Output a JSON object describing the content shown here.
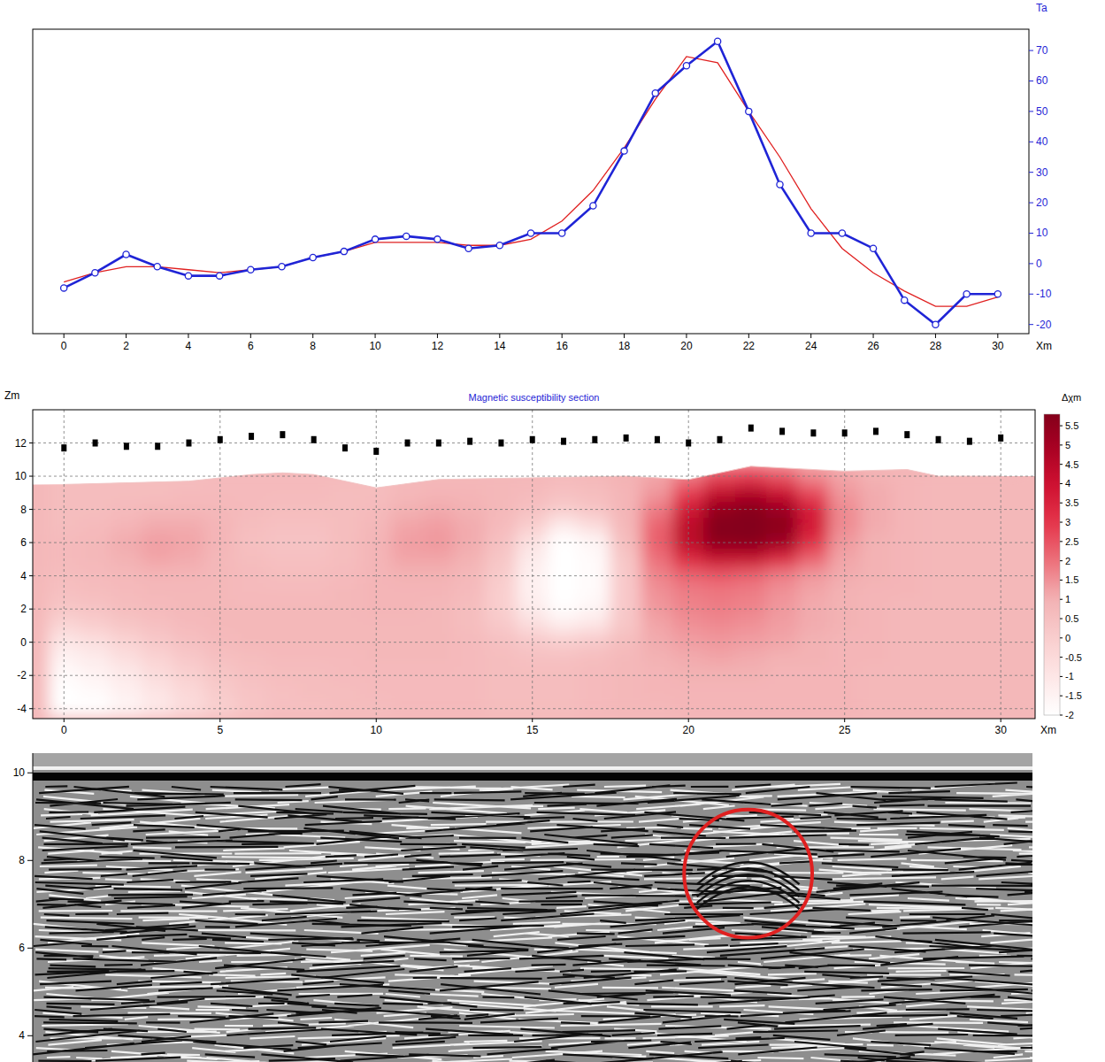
{
  "chart_data": [
    {
      "type": "line",
      "xlabel": "Xm",
      "ylabel": "Ta",
      "x": [
        0,
        1,
        2,
        3,
        4,
        5,
        6,
        7,
        8,
        9,
        10,
        11,
        12,
        13,
        14,
        15,
        16,
        17,
        18,
        19,
        20,
        21,
        22,
        23,
        24,
        25,
        26,
        27,
        28,
        29,
        30
      ],
      "series": [
        {
          "color": "#1f24d6",
          "marker": "circle",
          "line_style": "solid",
          "values": [
            -8,
            -3,
            3,
            -1,
            -4,
            -4,
            -2,
            -1,
            2,
            4,
            8,
            9,
            8,
            5,
            6,
            10,
            10,
            19,
            37,
            56,
            65,
            73,
            50,
            26,
            10,
            10,
            5,
            -12,
            -20,
            -10,
            -10
          ]
        },
        {
          "color": "#e02020",
          "marker": "none",
          "line_style": "solid",
          "values": [
            -6,
            -3,
            -1,
            -1,
            -2,
            -3,
            -2,
            -1,
            2,
            4,
            7,
            7,
            7,
            6,
            6,
            8,
            14,
            24,
            38,
            54,
            68,
            66,
            50,
            35,
            18,
            5,
            -3,
            -9,
            -14,
            -14,
            -11
          ]
        }
      ],
      "xlim": [
        -1,
        31
      ],
      "ylim": [
        -23,
        77
      ],
      "xticks": [
        0,
        2,
        4,
        6,
        8,
        10,
        12,
        14,
        16,
        18,
        20,
        22,
        24,
        26,
        28,
        30
      ],
      "yticks": [
        -20,
        -10,
        0,
        10,
        20,
        30,
        40,
        50,
        60,
        70
      ],
      "grid": false
    },
    {
      "type": "heatmap",
      "title": "Magnetic susceptibility section",
      "xlabel": "Xm",
      "ylabel": "Zm",
      "xlim": [
        -1,
        31.1
      ],
      "ylim": [
        -4.6,
        14
      ],
      "xticks": [
        0,
        5,
        10,
        15,
        20,
        25,
        30
      ],
      "yticks": [
        -4,
        -2,
        0,
        2,
        4,
        6,
        8,
        10,
        12
      ],
      "grid": true,
      "cell_x": [
        0,
        1,
        2,
        3,
        4,
        5,
        6,
        7,
        8,
        9,
        10,
        11,
        12,
        13,
        14,
        15,
        16,
        17,
        18,
        19,
        20,
        21,
        22,
        23,
        24,
        25,
        26,
        27,
        28,
        29,
        30
      ],
      "cell_z": [
        10,
        9,
        8,
        7,
        6,
        5,
        4,
        3,
        2,
        1,
        0,
        -1,
        -2,
        -3,
        -4
      ],
      "cells": [
        [
          0.6,
          0.6,
          0.6,
          0.6,
          0.6,
          0.7,
          0.7,
          0.7,
          0.7,
          0.7,
          0.7,
          0.8,
          0.8,
          0.8,
          0.8,
          0.8,
          0.7,
          0.8,
          1.0,
          1.2,
          1.8,
          2.6,
          2.8,
          2.4,
          1.6,
          1.2,
          1.0,
          0.9,
          0.8,
          0.8,
          0.8
        ],
        [
          0.6,
          0.6,
          0.6,
          0.6,
          0.7,
          0.7,
          0.7,
          0.7,
          0.7,
          0.6,
          0.6,
          0.8,
          0.9,
          0.9,
          0.8,
          0.7,
          0.5,
          0.6,
          0.9,
          1.4,
          2.8,
          4.2,
          4.6,
          4.0,
          2.6,
          1.4,
          1.1,
          0.9,
          0.8,
          0.8,
          0.8
        ],
        [
          0.6,
          0.6,
          0.7,
          0.8,
          0.8,
          0.8,
          0.7,
          0.6,
          0.6,
          0.6,
          0.7,
          1.0,
          1.1,
          1.0,
          0.8,
          0.5,
          0.1,
          0.4,
          0.9,
          1.8,
          3.8,
          5.4,
          5.7,
          5.2,
          3.6,
          1.6,
          1.1,
          0.9,
          0.8,
          0.8,
          0.8
        ],
        [
          0.6,
          0.7,
          0.9,
          1.1,
          1.1,
          0.9,
          0.6,
          0.5,
          0.5,
          0.6,
          0.8,
          1.2,
          1.3,
          1.1,
          0.7,
          0.0,
          -1.2,
          -0.6,
          0.8,
          2.2,
          4.4,
          5.8,
          5.8,
          5.6,
          3.8,
          1.6,
          1.1,
          0.9,
          0.8,
          0.8,
          0.8
        ],
        [
          0.7,
          0.8,
          1.1,
          1.3,
          1.2,
          0.9,
          0.5,
          0.4,
          0.4,
          0.6,
          0.9,
          1.3,
          1.4,
          1.1,
          0.5,
          -0.8,
          -2.0,
          -1.6,
          0.6,
          2.3,
          4.4,
          5.6,
          5.7,
          5.2,
          3.2,
          1.4,
          1.0,
          0.9,
          0.8,
          0.8,
          0.8
        ],
        [
          0.7,
          0.8,
          1.0,
          1.2,
          1.1,
          0.8,
          0.6,
          0.5,
          0.5,
          0.6,
          0.9,
          1.2,
          1.2,
          1.0,
          0.3,
          -1.2,
          -2.0,
          -1.8,
          0.3,
          2.0,
          3.4,
          4.2,
          4.2,
          3.4,
          2.2,
          1.2,
          1.0,
          0.9,
          0.8,
          0.8,
          0.8
        ],
        [
          0.6,
          0.7,
          0.8,
          0.9,
          0.9,
          0.8,
          0.7,
          0.6,
          0.6,
          0.7,
          0.9,
          1.0,
          1.0,
          0.8,
          0.1,
          -1.4,
          -2.0,
          -1.8,
          0.2,
          1.7,
          2.2,
          2.4,
          2.2,
          1.8,
          1.4,
          1.1,
          1.0,
          0.9,
          0.8,
          0.8,
          0.8
        ],
        [
          0.5,
          0.6,
          0.7,
          0.8,
          0.8,
          0.8,
          0.7,
          0.7,
          0.7,
          0.8,
          0.9,
          0.9,
          0.9,
          0.7,
          0.0,
          -1.4,
          -2.0,
          -1.8,
          0.2,
          1.5,
          1.8,
          1.9,
          1.8,
          1.5,
          1.2,
          1.0,
          0.9,
          0.9,
          0.8,
          0.8,
          0.8
        ],
        [
          0.3,
          0.4,
          0.6,
          0.7,
          0.8,
          0.8,
          0.8,
          0.8,
          0.8,
          0.8,
          0.9,
          0.9,
          0.8,
          0.6,
          0.0,
          -1.2,
          -1.9,
          -1.6,
          0.2,
          1.4,
          1.7,
          1.8,
          1.7,
          1.4,
          1.1,
          1.0,
          0.9,
          0.8,
          0.8,
          0.8,
          0.8
        ],
        [
          -0.3,
          0.0,
          0.3,
          0.5,
          0.7,
          0.8,
          0.8,
          0.8,
          0.8,
          0.8,
          0.8,
          0.8,
          0.8,
          0.6,
          0.2,
          -0.6,
          -1.2,
          -0.9,
          0.3,
          1.2,
          1.5,
          1.6,
          1.5,
          1.3,
          1.1,
          1.0,
          0.9,
          0.8,
          0.8,
          0.8,
          0.8
        ],
        [
          -1.0,
          -0.7,
          -0.2,
          0.2,
          0.5,
          0.7,
          0.8,
          0.8,
          0.8,
          0.8,
          0.8,
          0.8,
          0.8,
          0.7,
          0.5,
          0.2,
          0.0,
          0.2,
          0.6,
          1.1,
          1.3,
          1.4,
          1.3,
          1.2,
          1.0,
          0.9,
          0.9,
          0.8,
          0.8,
          0.8,
          0.8
        ],
        [
          -1.5,
          -1.2,
          -0.7,
          -0.2,
          0.2,
          0.5,
          0.6,
          0.7,
          0.7,
          0.7,
          0.8,
          0.8,
          0.8,
          0.7,
          0.6,
          0.5,
          0.5,
          0.6,
          0.8,
          1.0,
          1.1,
          1.2,
          1.1,
          1.0,
          1.0,
          0.9,
          0.9,
          0.8,
          0.8,
          0.8,
          0.8
        ],
        [
          -1.8,
          -1.5,
          -1.1,
          -0.6,
          -0.1,
          0.3,
          0.5,
          0.6,
          0.6,
          0.7,
          0.7,
          0.7,
          0.7,
          0.7,
          0.6,
          0.6,
          0.6,
          0.7,
          0.8,
          0.9,
          1.0,
          1.0,
          1.0,
          0.9,
          0.9,
          0.9,
          0.8,
          0.8,
          0.8,
          0.8,
          0.8
        ],
        [
          -2.0,
          -1.8,
          -1.4,
          -0.9,
          -0.4,
          0.1,
          0.4,
          0.5,
          0.6,
          0.6,
          0.7,
          0.7,
          0.7,
          0.7,
          0.6,
          0.6,
          0.6,
          0.7,
          0.8,
          0.9,
          0.9,
          0.9,
          0.9,
          0.9,
          0.9,
          0.9,
          0.8,
          0.8,
          0.8,
          0.8,
          0.8
        ],
        [
          -2.0,
          -2.0,
          -1.6,
          -1.1,
          -0.6,
          -0.1,
          0.3,
          0.5,
          0.5,
          0.6,
          0.6,
          0.7,
          0.7,
          0.7,
          0.6,
          0.6,
          0.6,
          0.7,
          0.8,
          0.8,
          0.9,
          0.9,
          0.9,
          0.9,
          0.9,
          0.9,
          0.8,
          0.8,
          0.8,
          0.8,
          0.8
        ]
      ],
      "surface": {
        "x": [
          0,
          2,
          4,
          6,
          7,
          8,
          10,
          12,
          15,
          18,
          20,
          21,
          22,
          23,
          25,
          27,
          28,
          30
        ],
        "z": [
          9.5,
          9.6,
          9.7,
          10.1,
          10.2,
          10.1,
          9.3,
          9.8,
          9.9,
          10.0,
          9.8,
          10.2,
          10.6,
          10.5,
          10.3,
          10.4,
          10.0,
          10.0
        ]
      },
      "sensors": {
        "color": "#000000",
        "marker": "square",
        "x": [
          0,
          1,
          2,
          3,
          4,
          5,
          6,
          7,
          8,
          9,
          10,
          11,
          12,
          13,
          14,
          15,
          16,
          17,
          18,
          19,
          20,
          21,
          22,
          23,
          24,
          25,
          26,
          27,
          28,
          29,
          30
        ],
        "z": [
          11.7,
          12,
          11.8,
          11.8,
          12,
          12.2,
          12.4,
          12.5,
          12.2,
          11.7,
          11.5,
          12,
          12,
          12.1,
          12,
          12.2,
          12.1,
          12.2,
          12.3,
          12.2,
          12,
          12.2,
          12.9,
          12.7,
          12.6,
          12.6,
          12.7,
          12.5,
          12.2,
          12.1,
          12.3
        ]
      },
      "colorbar": {
        "label": "Δχm",
        "range": [
          -2,
          5.8
        ],
        "ticks": [
          -2,
          -1.5,
          -1,
          -0.5,
          0,
          0.5,
          1,
          1.5,
          2,
          2.5,
          3,
          3.5,
          4,
          4.5,
          5,
          5.5
        ]
      }
    },
    {
      "type": "radargram",
      "xlim": [
        -1,
        31
      ],
      "ylim": [
        3.4,
        10.45
      ],
      "yticks": [
        4,
        6,
        8,
        10
      ],
      "tick_labels": "y",
      "annotations": [
        {
          "type": "circle",
          "x": 21.9,
          "z": 7.7,
          "r": 2.05,
          "color": "#e02020"
        }
      ]
    }
  ]
}
